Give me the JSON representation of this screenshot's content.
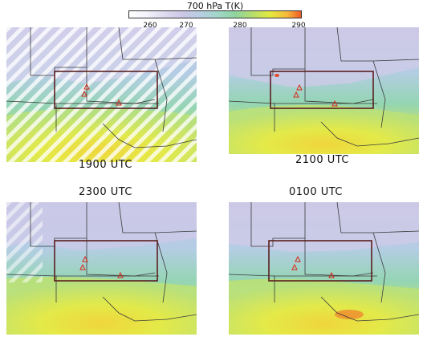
{
  "colorbar": {
    "title": "700 hPa T(K)",
    "ticks": [
      "260",
      "270",
      "280",
      "290"
    ]
  },
  "panels": [
    {
      "id": "p1900",
      "label": "1900 UTC"
    },
    {
      "id": "p2100",
      "label": "2100 UTC"
    },
    {
      "id": "p2300",
      "label": "2300 UTC"
    },
    {
      "id": "p0100",
      "label": "0100 UTC"
    }
  ],
  "colors": {
    "box": "#5a1e1e",
    "marker": "#d42b1b",
    "cold": "#c7c6e6",
    "mid": "#9ed5be",
    "warm": "#e6e83c"
  }
}
